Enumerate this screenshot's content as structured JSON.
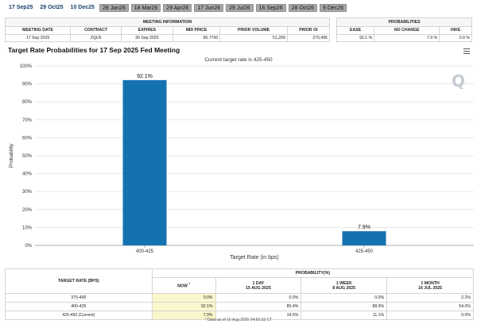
{
  "tabs": [
    {
      "label": "17 Sep25",
      "style": "plain"
    },
    {
      "label": "29 Oct25",
      "style": "plain"
    },
    {
      "label": "10 Dec25",
      "style": "plain"
    },
    {
      "label": "28 Jan26",
      "style": "grey"
    },
    {
      "label": "18 Mar26",
      "style": "grey"
    },
    {
      "label": "29 Apr26",
      "style": "grey"
    },
    {
      "label": "17 Jun26",
      "style": "grey"
    },
    {
      "label": "29 Jul26",
      "style": "grey"
    },
    {
      "label": "16 Sep26",
      "style": "grey"
    },
    {
      "label": "28 Oct26",
      "style": "grey"
    },
    {
      "label": "9 Dec26",
      "style": "grey"
    }
  ],
  "meeting_info": {
    "group_label": "MEETING INFORMATION",
    "headers": [
      "MEETING DATE",
      "CONTRACT",
      "EXPIRES",
      "MID PRICE",
      "PRIOR VOLUME",
      "PRIOR OI"
    ],
    "values": [
      "17 Sep 2025",
      "ZQU5",
      "30 Sep 2025",
      "95.7700",
      "51,209",
      "270,495"
    ]
  },
  "probabilities": {
    "group_label": "PROBABILITIES",
    "headers": [
      "EASE",
      "NO CHANGE",
      "HIKE"
    ],
    "values": [
      "92.1 %",
      "7.9 %",
      "0.0 %"
    ]
  },
  "chart": {
    "title": "Target Rate Probabilities for 17 Sep 2025 Fed Meeting",
    "subtitle": "Current target rate is 425-450",
    "menu_icon": "hamburger-menu-icon",
    "watermark_logo": "Q"
  },
  "chart_data": {
    "type": "bar",
    "title": "Target Rate Probabilities for 17 Sep 2025 Fed Meeting",
    "subtitle": "Current target rate is 425-450",
    "categories": [
      "400-425",
      "425-450"
    ],
    "values": [
      92.1,
      7.9
    ],
    "data_labels": [
      "92.1%",
      "7.9%"
    ],
    "xlabel": "Target Rate (in bps)",
    "ylabel": "Probability",
    "ylim": [
      0,
      100
    ],
    "yticks": [
      "0%",
      "10%",
      "20%",
      "30%",
      "40%",
      "50%",
      "60%",
      "70%",
      "80%",
      "90%",
      "100%"
    ],
    "grid": true,
    "bar_color": "#1572b0"
  },
  "prob_table": {
    "rate_header": "TARGET RATE (BPS)",
    "group_header": "PROBABILITY(%)",
    "columns": [
      {
        "title": "NOW",
        "marker": "*",
        "date": ""
      },
      {
        "title": "1 DAY",
        "marker": "",
        "date": "15 AUG 2025"
      },
      {
        "title": "1 WEEK",
        "marker": "",
        "date": "8 AUG 2025"
      },
      {
        "title": "1 MONTH",
        "marker": "",
        "date": "16 JUL 2025"
      }
    ],
    "rows": [
      {
        "rate": "375-400",
        "now": "0.0%",
        "day": "0.0%",
        "week": "0.0%",
        "month": "2.2%"
      },
      {
        "rate": "400-425",
        "now": "92.1%",
        "day": "85.4%",
        "week": "88.9%",
        "month": "54.0%"
      },
      {
        "rate": "425-450 (Current)",
        "now": "7.9%",
        "day": "14.6%",
        "week": "11.1%",
        "month": "0.0%"
      }
    ]
  },
  "footnote": "* Data as of 16 Aug 2025 04:50:33 CT",
  "colors": {
    "bar": "#1572b0",
    "now_highlight": "#fbf7cd",
    "tab_grey": "#a9a9a9"
  }
}
